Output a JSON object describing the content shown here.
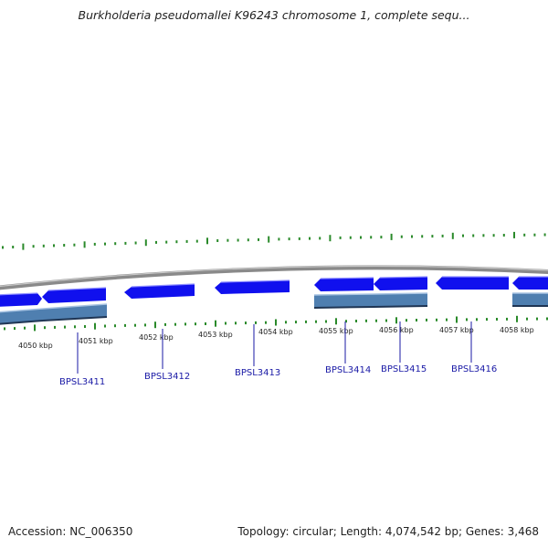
{
  "title": "Burkholderia pseudomallei K96243 chromosome 1, complete sequ...",
  "footer": {
    "accession": "Accession: NC_006350",
    "stats": "Topology: circular; Length: 4,074,542 bp; Genes: 3,468"
  },
  "colors": {
    "backbone": "#8a8a8a",
    "cds": "#1010ee",
    "gene": "#4f7fb0",
    "tick": "#2a8a2a",
    "gene_label": "#1a1aa6"
  },
  "scale": {
    "unit": "kbp",
    "labels": [
      "4050 kbp",
      "4051 kbp",
      "4052 kbp",
      "4053 kbp",
      "4054 kbp",
      "4055 kbp",
      "4056 kbp",
      "4057 kbp",
      "4058 kbp"
    ]
  },
  "cds_features": [
    {
      "strand": "reverse",
      "gene_track": true
    },
    {
      "strand": "reverse",
      "gene_track": true
    },
    {
      "strand": "reverse",
      "gene_track": false
    },
    {
      "strand": "reverse",
      "gene_track": false
    },
    {
      "strand": "reverse",
      "gene_track": true
    },
    {
      "strand": "reverse",
      "gene_track": true
    },
    {
      "strand": "reverse",
      "gene_track": false
    },
    {
      "strand": "reverse",
      "gene_track": true
    }
  ],
  "gene_labels": [
    "BPSL3411",
    "BPSL3412",
    "BPSL3413",
    "BPSL3414",
    "BPSL3415",
    "BPSL3416"
  ]
}
